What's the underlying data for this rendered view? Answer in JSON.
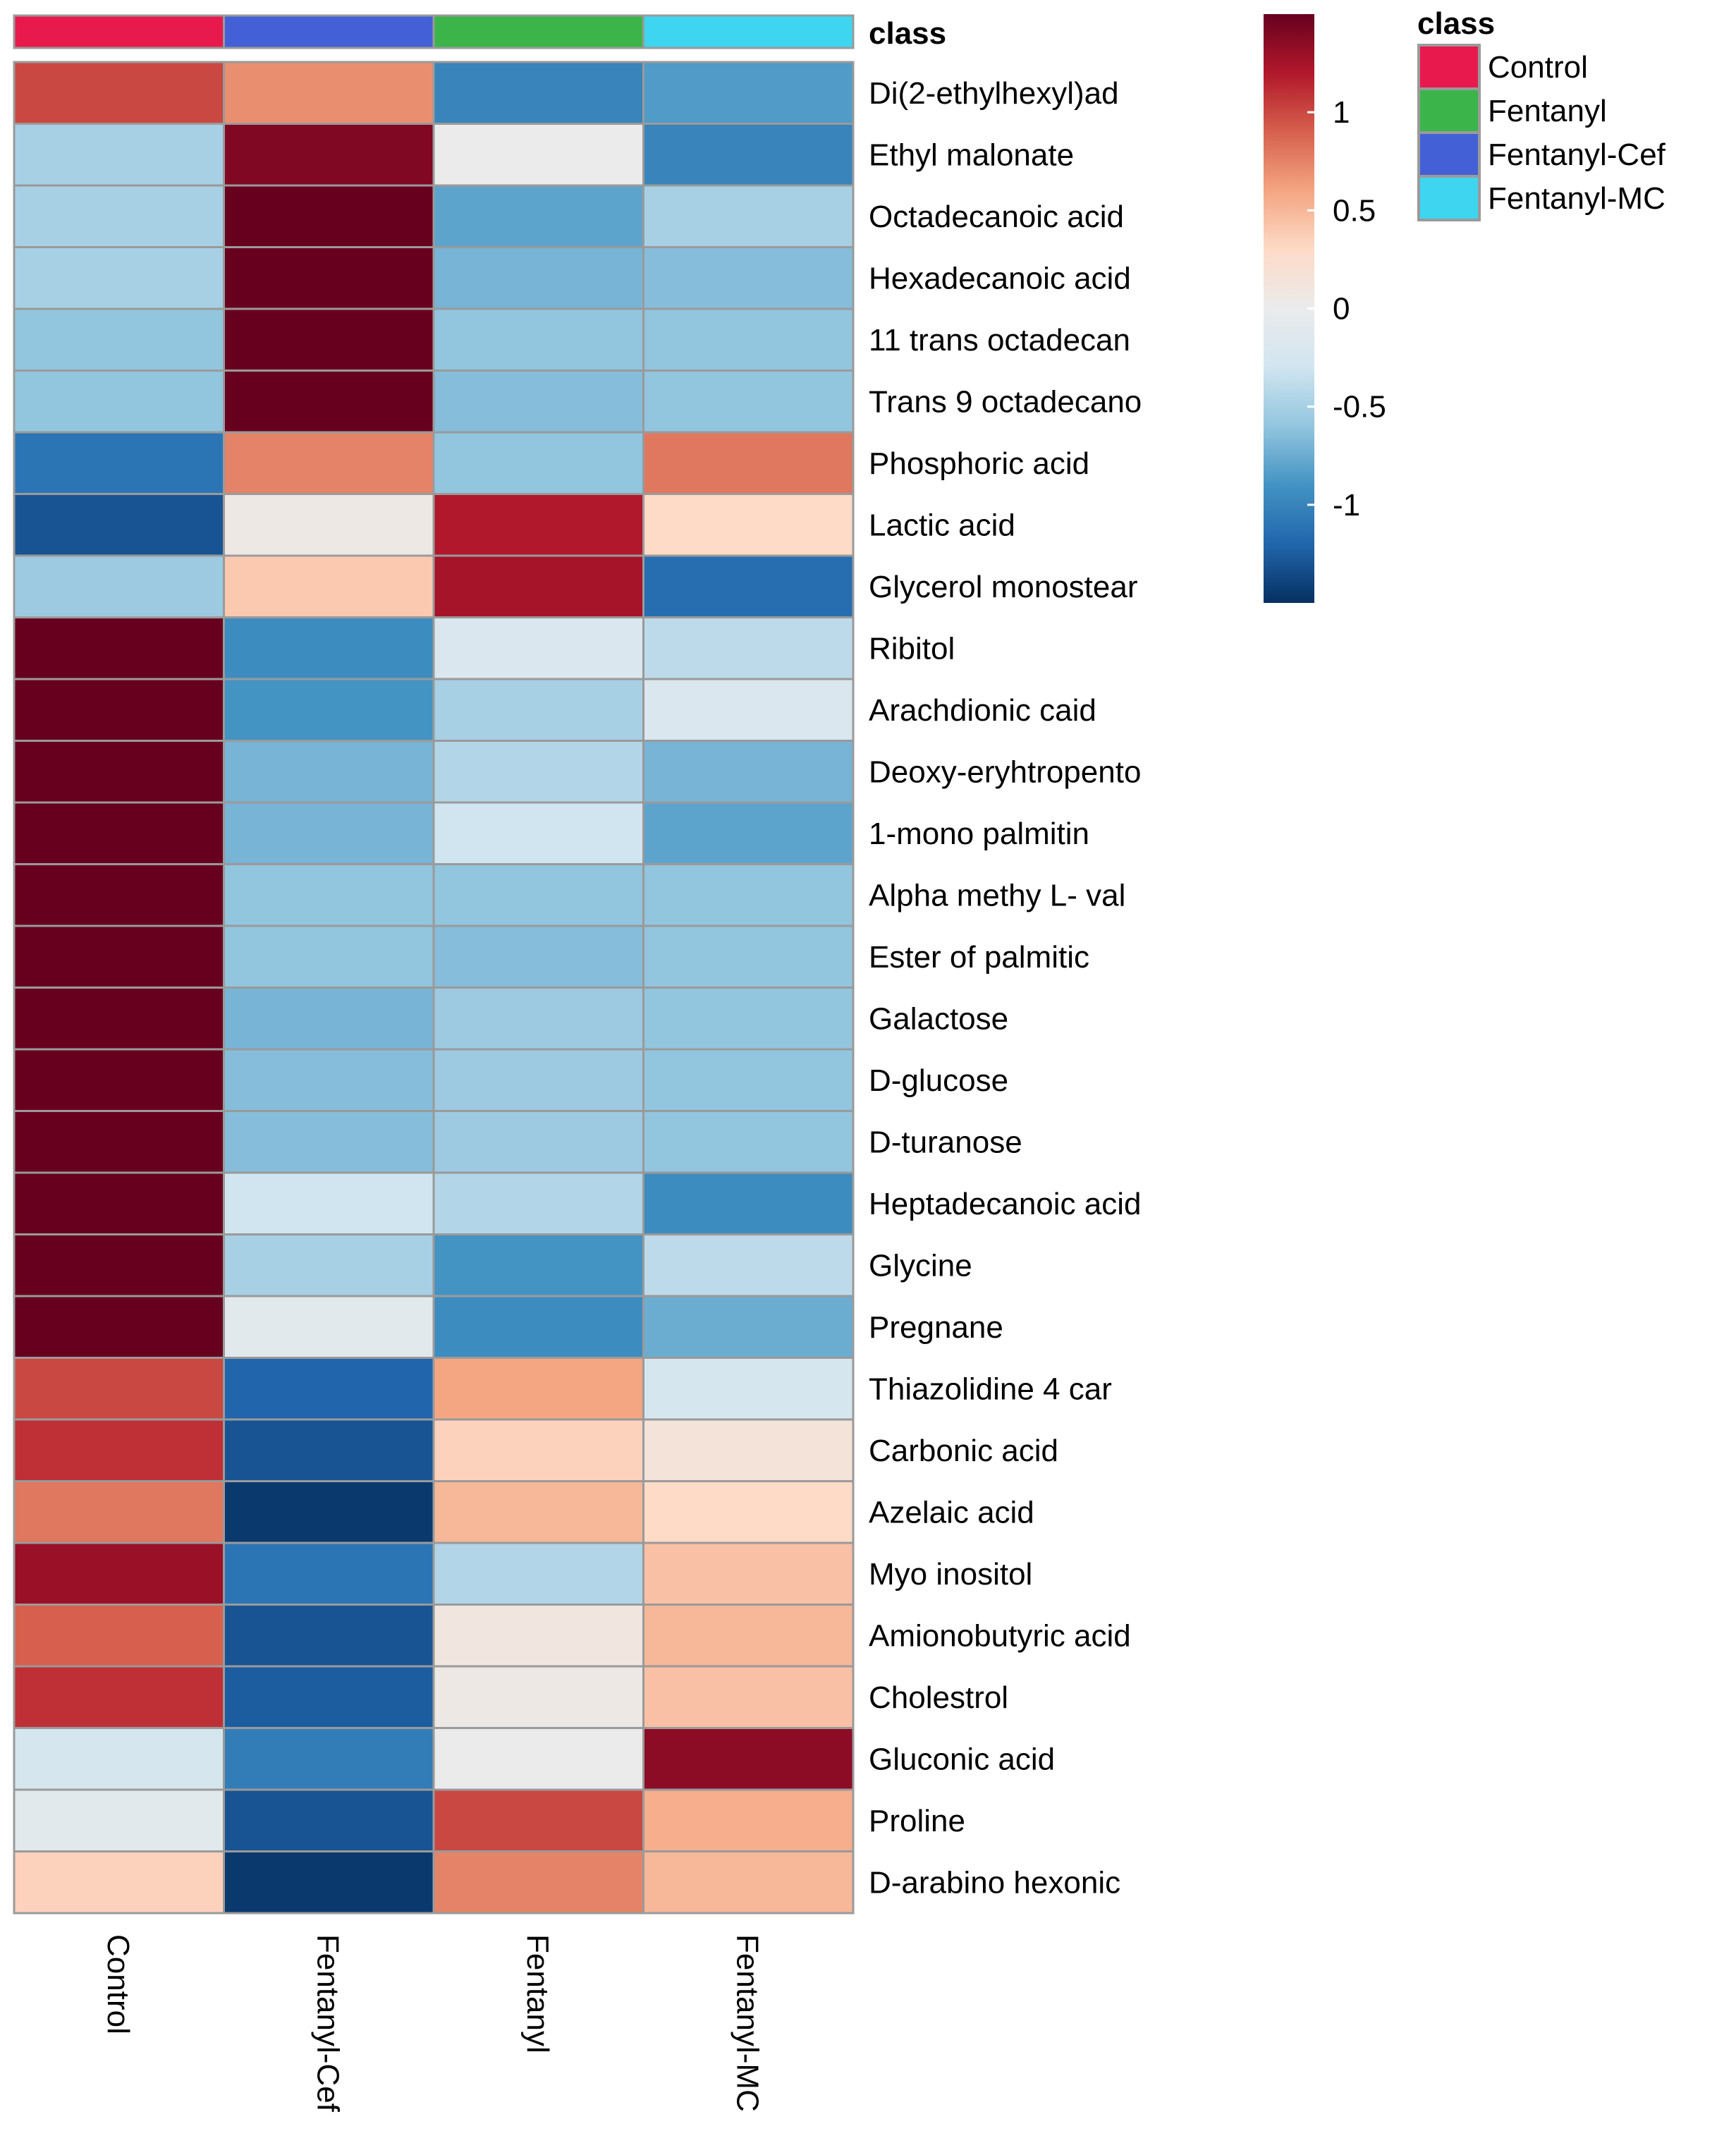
{
  "chart_data": {
    "type": "heatmap",
    "title": "",
    "columns": [
      "Control",
      "Fentanyl-Cef",
      "Fentanyl",
      "Fentanyl-MC"
    ],
    "column_classes": [
      "Control",
      "Fentanyl-Cef",
      "Fentanyl",
      "Fentanyl-MC"
    ],
    "annotation_label": "class",
    "rows": [
      "Di(2-ethylhexyl)ad",
      "Ethyl malonate",
      "Octadecanoic acid",
      "Hexadecanoic acid",
      "11 trans octadecan",
      "Trans 9 octadecano",
      "Phosphoric acid",
      "Lactic acid",
      "Glycerol monostear",
      "Ribitol",
      "Arachdionic caid",
      "Deoxy-eryhtropento",
      "1-mono palmitin",
      "Alpha methy L- val",
      "Ester of palmitic",
      "Galactose",
      "D-glucose",
      "D-turanose",
      "Heptadecanoic acid",
      "Glycine",
      "Pregnane",
      "Thiazolidine 4 car",
      "Carbonic acid",
      "Azelaic acid",
      "Myo inositol",
      "Amionobutyric acid",
      "Cholestrol",
      "Gluconic acid",
      "Proline",
      "D-arabino hexonic"
    ],
    "values": [
      [
        1.0,
        0.7,
        -1.0,
        -0.85
      ],
      [
        -0.5,
        1.4,
        0.0,
        -1.0
      ],
      [
        -0.5,
        1.5,
        -0.8,
        -0.5
      ],
      [
        -0.5,
        1.5,
        -0.7,
        -0.65
      ],
      [
        -0.6,
        1.5,
        -0.6,
        -0.6
      ],
      [
        -0.6,
        1.5,
        -0.65,
        -0.6
      ],
      [
        -1.1,
        0.75,
        -0.6,
        0.8
      ],
      [
        -1.3,
        0.05,
        1.2,
        0.3
      ],
      [
        -0.55,
        0.4,
        1.25,
        -1.15
      ],
      [
        1.5,
        -0.95,
        -0.2,
        -0.4
      ],
      [
        1.5,
        -0.9,
        -0.5,
        -0.2
      ],
      [
        1.5,
        -0.7,
        -0.45,
        -0.7
      ],
      [
        1.5,
        -0.7,
        -0.3,
        -0.8
      ],
      [
        1.5,
        -0.6,
        -0.6,
        -0.6
      ],
      [
        1.5,
        -0.6,
        -0.65,
        -0.6
      ],
      [
        1.5,
        -0.7,
        -0.55,
        -0.6
      ],
      [
        1.5,
        -0.65,
        -0.55,
        -0.6
      ],
      [
        1.5,
        -0.65,
        -0.55,
        -0.6
      ],
      [
        1.5,
        -0.3,
        -0.45,
        -0.95
      ],
      [
        1.5,
        -0.5,
        -0.9,
        -0.4
      ],
      [
        1.5,
        -0.1,
        -0.95,
        -0.75
      ],
      [
        1.0,
        -1.2,
        0.6,
        -0.25
      ],
      [
        1.1,
        -1.3,
        0.35,
        0.15
      ],
      [
        0.8,
        -1.45,
        0.5,
        0.3
      ],
      [
        1.3,
        -1.1,
        -0.45,
        0.45
      ],
      [
        0.9,
        -1.3,
        0.1,
        0.5
      ],
      [
        1.1,
        -1.25,
        0.05,
        0.45
      ],
      [
        -0.25,
        -1.05,
        0.0,
        1.35
      ],
      [
        -0.1,
        -1.3,
        1.0,
        0.55
      ],
      [
        0.35,
        -1.45,
        0.75,
        0.5
      ]
    ],
    "color_scale": {
      "ticks": [
        1,
        0.5,
        0,
        -0.5,
        -1
      ],
      "tick_labels": [
        "1",
        "0.5",
        "0",
        "-0.5",
        "-1"
      ],
      "range": [
        -1.5,
        1.5
      ],
      "low_color": "#053061",
      "mid_color": "#f7f7f7",
      "high_color": "#67001f"
    },
    "legend": {
      "title": "class",
      "entries": [
        {
          "label": "Control",
          "color": "#e8194d"
        },
        {
          "label": "Fentanyl",
          "color": "#3bb54a"
        },
        {
          "label": "Fentanyl-Cef",
          "color": "#4460d6"
        },
        {
          "label": "Fentanyl-MC",
          "color": "#3dd5f0"
        }
      ]
    }
  }
}
